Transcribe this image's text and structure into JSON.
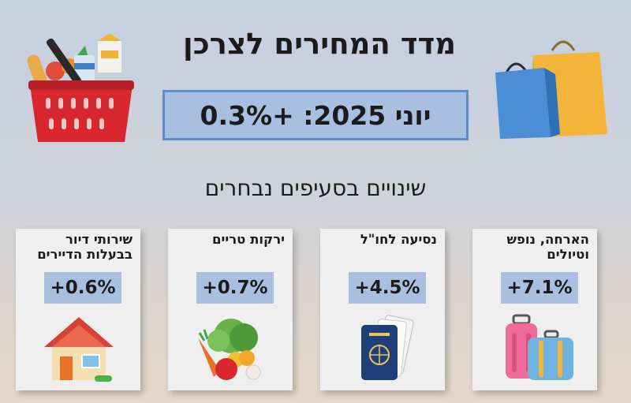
{
  "header": {
    "title": "מדד המחירים לצרכן",
    "headline": "יוני 2025: +0.3%",
    "subtitle": "שינויים בסעיפים נבחרים"
  },
  "decor": {
    "left_icon": "shopping-basket-icon",
    "right_icon": "shopping-bags-icon"
  },
  "colors": {
    "highlight_box": "#a9bfe0",
    "highlight_border": "#5f8ccb",
    "card_bg": "#efeff0"
  },
  "cards": [
    {
      "label": "הארחה, נופש וטיולים",
      "value": "+7.1%",
      "icon": "suitcase-icon"
    },
    {
      "label": "נסיעה לחו\"ל",
      "value": "+4.5%",
      "icon": "passport-icon"
    },
    {
      "label": "ירקות טריים",
      "value": "+0.7%",
      "icon": "vegetables-icon"
    },
    {
      "label": "שירותי דיור בבעלות הדיירים",
      "value": "+0.6%",
      "icon": "house-icon"
    }
  ]
}
